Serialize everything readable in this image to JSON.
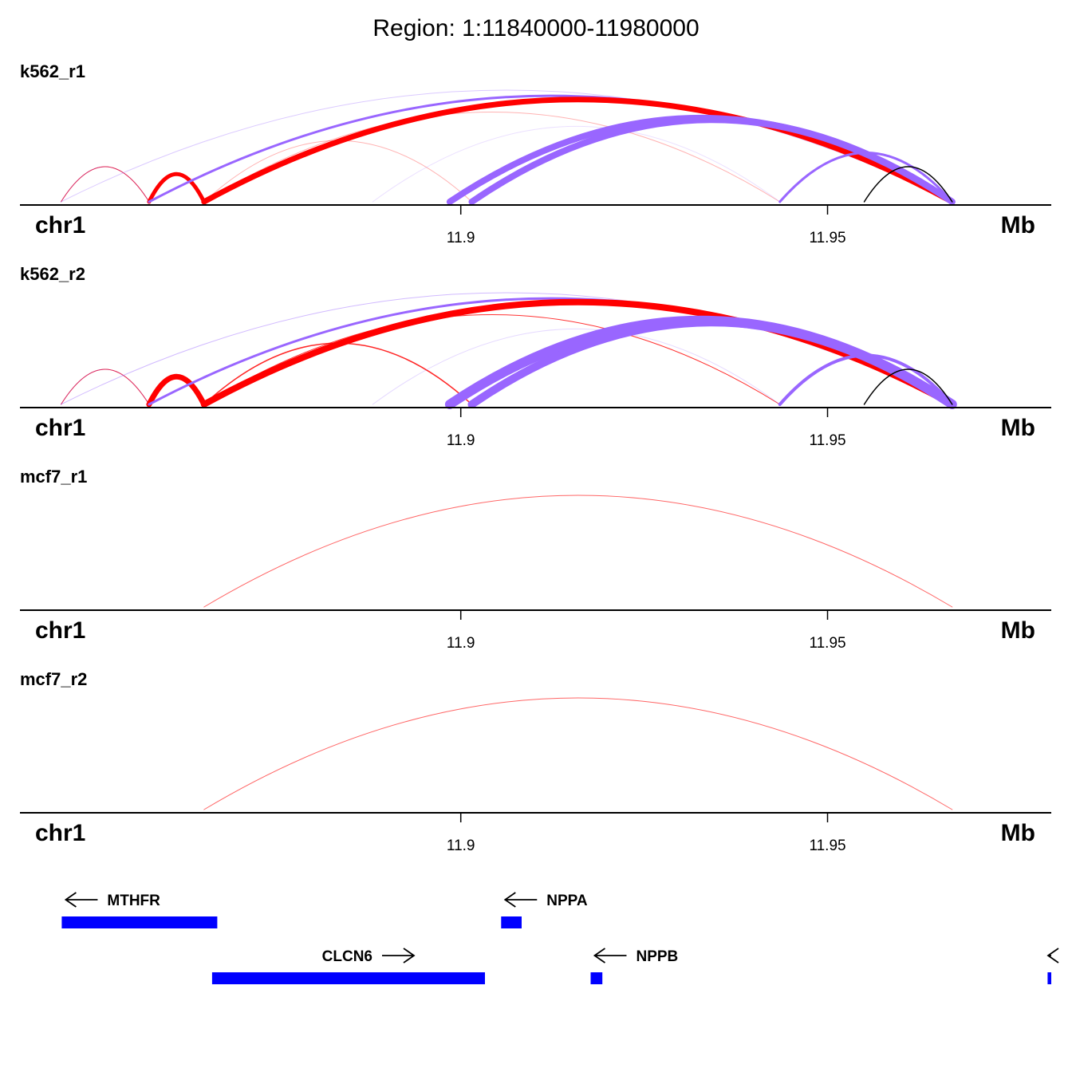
{
  "chart_data": {
    "type": "arc",
    "title": "Region: 1:11840000-11980000",
    "xlabel": "Mb",
    "chromosome": "chr1",
    "xlim": [
      11.8399,
      11.9805
    ],
    "tick_values": [
      11.9,
      11.95
    ],
    "tick_labels": [
      "11.9",
      "11.95"
    ],
    "colors": {
      "red": "#ff0000",
      "purple": "#9966ff",
      "black": "#000000",
      "gene": "#0000ff"
    },
    "tracks": [
      {
        "name": "k562_r1",
        "arcs": [
          {
            "start": 11.8455,
            "end": 11.8575,
            "weight": 1,
            "color": "red",
            "alpha": 1.0
          },
          {
            "start": 11.8455,
            "end": 11.8575,
            "weight": 0.8,
            "color": "purple",
            "alpha": 0.45
          },
          {
            "start": 11.8455,
            "end": 11.967,
            "weight": 1,
            "color": "purple",
            "alpha": 0.35
          },
          {
            "start": 11.8575,
            "end": 11.865,
            "weight": 5,
            "color": "red",
            "alpha": 1.0
          },
          {
            "start": 11.8575,
            "end": 11.967,
            "weight": 3,
            "color": "purple",
            "alpha": 1.0
          },
          {
            "start": 11.865,
            "end": 11.967,
            "weight": 7,
            "color": "red",
            "alpha": 1.0
          },
          {
            "start": 11.865,
            "end": 11.9015,
            "weight": 1,
            "color": "red",
            "alpha": 0.3
          },
          {
            "start": 11.865,
            "end": 11.9435,
            "weight": 1,
            "color": "red",
            "alpha": 0.3
          },
          {
            "start": 11.888,
            "end": 11.9435,
            "weight": 1,
            "color": "purple",
            "alpha": 0.2
          },
          {
            "start": 11.8985,
            "end": 11.967,
            "weight": 8,
            "color": "purple",
            "alpha": 1.0
          },
          {
            "start": 11.9015,
            "end": 11.967,
            "weight": 8,
            "color": "purple",
            "alpha": 1.0
          },
          {
            "start": 11.9435,
            "end": 11.967,
            "weight": 3,
            "color": "purple",
            "alpha": 1.0
          },
          {
            "start": 11.955,
            "end": 11.967,
            "weight": 1.5,
            "color": "black",
            "alpha": 1.0
          }
        ]
      },
      {
        "name": "k562_r2",
        "arcs": [
          {
            "start": 11.8455,
            "end": 11.8575,
            "weight": 1,
            "color": "red",
            "alpha": 1.0
          },
          {
            "start": 11.8455,
            "end": 11.8575,
            "weight": 0.8,
            "color": "purple",
            "alpha": 0.45
          },
          {
            "start": 11.8455,
            "end": 11.967,
            "weight": 1,
            "color": "purple",
            "alpha": 0.45
          },
          {
            "start": 11.8575,
            "end": 11.865,
            "weight": 7,
            "color": "red",
            "alpha": 1.0
          },
          {
            "start": 11.8575,
            "end": 11.967,
            "weight": 3,
            "color": "purple",
            "alpha": 1.0
          },
          {
            "start": 11.865,
            "end": 11.967,
            "weight": 8,
            "color": "red",
            "alpha": 1.0
          },
          {
            "start": 11.865,
            "end": 11.9015,
            "weight": 1.5,
            "color": "red",
            "alpha": 0.85
          },
          {
            "start": 11.865,
            "end": 11.9435,
            "weight": 1,
            "color": "red",
            "alpha": 0.8
          },
          {
            "start": 11.888,
            "end": 11.9435,
            "weight": 1,
            "color": "purple",
            "alpha": 0.25
          },
          {
            "start": 11.8985,
            "end": 11.967,
            "weight": 12,
            "color": "purple",
            "alpha": 1.0
          },
          {
            "start": 11.9015,
            "end": 11.967,
            "weight": 10,
            "color": "purple",
            "alpha": 1.0
          },
          {
            "start": 11.9435,
            "end": 11.967,
            "weight": 4,
            "color": "purple",
            "alpha": 1.0
          },
          {
            "start": 11.955,
            "end": 11.967,
            "weight": 1.5,
            "color": "black",
            "alpha": 1.0
          }
        ]
      },
      {
        "name": "mcf7_r1",
        "arcs": [
          {
            "start": 11.865,
            "end": 11.967,
            "weight": 1,
            "color": "red",
            "alpha": 0.6
          }
        ]
      },
      {
        "name": "mcf7_r2",
        "arcs": [
          {
            "start": 11.865,
            "end": 11.967,
            "weight": 1,
            "color": "red",
            "alpha": 0.6
          }
        ]
      }
    ],
    "genes": [
      {
        "name": "MTHFR",
        "start": 11.8456,
        "end": 11.8668,
        "strand": "-",
        "row": 0
      },
      {
        "name": "NPPA",
        "start": 11.9055,
        "end": 11.9083,
        "strand": "-",
        "row": 0
      },
      {
        "name": "CLCN6",
        "start": 11.8661,
        "end": 11.9033,
        "strand": "+",
        "row": 1
      },
      {
        "name": "NPPB",
        "start": 11.9177,
        "end": 11.9193,
        "strand": "-",
        "row": 1
      },
      {
        "name": "",
        "start": 11.98,
        "end": 11.9805,
        "strand": "-",
        "row": 1
      }
    ]
  }
}
